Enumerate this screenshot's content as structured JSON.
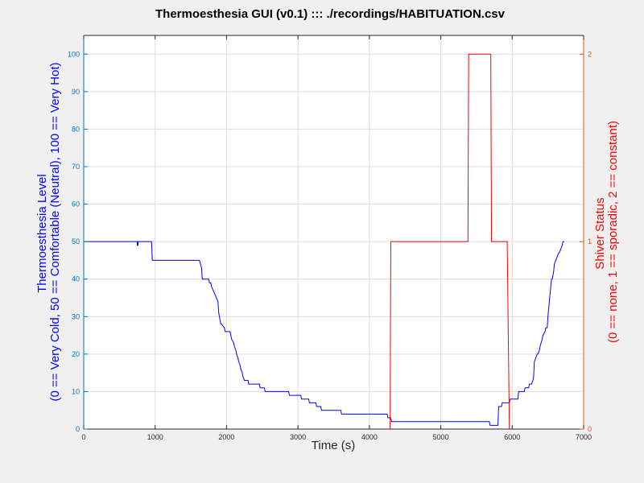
{
  "window": {
    "title": "Thermoesthesia GUI (v0.1) ::: ./recordings/HABITUATION.csv"
  },
  "chart_data": {
    "type": "line",
    "title": "Thermoesthesia GUI (v0.1) ::: ./recordings/HABITUATION.csv",
    "xlabel": "Time (s)",
    "xlim": [
      0,
      7000
    ],
    "x_ticks": [
      0,
      1000,
      2000,
      3000,
      4000,
      5000,
      6000,
      7000
    ],
    "grid": true,
    "left_axis": {
      "label_lines": [
        "Thermoesthesia Level",
        "(0 == Very Cold, 50 == Comfortable (Neutral), 100 == Very Hot)"
      ],
      "ylim": [
        0,
        105
      ],
      "ticks": [
        0,
        10,
        20,
        30,
        40,
        50,
        60,
        70,
        80,
        90,
        100
      ],
      "color": "#0000ff",
      "tick_color": "#0072bd"
    },
    "right_axis": {
      "label_lines": [
        "Shiver Status",
        "(0 == none, 1 == sporadic, 2 == constant)"
      ],
      "ylim": [
        0,
        2.1
      ],
      "ticks": [
        0,
        1,
        2
      ],
      "color": "#ff0000",
      "tick_color": "#d95319"
    },
    "series": [
      {
        "axis": "left",
        "color": "#0000ff",
        "x": [
          0,
          750,
          750,
          760,
          760,
          950,
          960,
          1620,
          1650,
          1660,
          1750,
          1760,
          1780,
          1790,
          1880,
          1890,
          1900,
          1910,
          1920,
          1930,
          1970,
          1980,
          2050,
          2060,
          2070,
          2100,
          2110,
          2130,
          2140,
          2160,
          2170,
          2190,
          2200,
          2220,
          2230,
          2250,
          2260,
          2270,
          2280,
          2290,
          2300,
          2310,
          2340,
          2350,
          2460,
          2470,
          2530,
          2540,
          2720,
          2730,
          2870,
          2880,
          3040,
          3050,
          3150,
          3160,
          3250,
          3260,
          3320,
          3330,
          3600,
          3610,
          4250,
          4260,
          4300,
          4310,
          5680,
          5690,
          5720,
          5730,
          5800,
          5810,
          5850,
          5860,
          5960,
          5970,
          6080,
          6090,
          6170,
          6180,
          6230,
          6240,
          6270,
          6290,
          6300,
          6310,
          6350,
          6360,
          6380,
          6390,
          6420,
          6430,
          6460,
          6470,
          6490,
          6500,
          6550,
          6560,
          6580,
          6590,
          6650,
          6660,
          6700,
          6710,
          6730
        ],
        "values": [
          50,
          50,
          49,
          49,
          50,
          50,
          45,
          45,
          43,
          40,
          40,
          39,
          39,
          38,
          34,
          31,
          30,
          29,
          28,
          28,
          27,
          26,
          26,
          25,
          24,
          23,
          22,
          21,
          20,
          19,
          18,
          17,
          16,
          15,
          14,
          13,
          13,
          13,
          13,
          13,
          13,
          12,
          12,
          12,
          12,
          11,
          11,
          10,
          10,
          10,
          10,
          9,
          9,
          8,
          8,
          7,
          7,
          6,
          6,
          5,
          5,
          4,
          4,
          3,
          3,
          2,
          2,
          1,
          1,
          1,
          1,
          6,
          6,
          7,
          7,
          8,
          8,
          10,
          10,
          11,
          11,
          12,
          12,
          13,
          14,
          18,
          20,
          20,
          21,
          22,
          24,
          25,
          26,
          27,
          27,
          30,
          40,
          40,
          42,
          44,
          47,
          47,
          49,
          50,
          50
        ]
      },
      {
        "axis": "right",
        "color": "#ff0000",
        "x": [
          0,
          4290,
          4300,
          5380,
          5390,
          5700,
          5710,
          5930,
          5960,
          6740
        ],
        "values": [
          0,
          0,
          1,
          1,
          2,
          2,
          1,
          1,
          0,
          0
        ]
      }
    ]
  }
}
